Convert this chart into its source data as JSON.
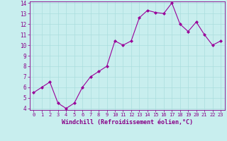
{
  "x": [
    0,
    1,
    2,
    3,
    4,
    5,
    6,
    7,
    8,
    9,
    10,
    11,
    12,
    13,
    14,
    15,
    16,
    17,
    18,
    19,
    20,
    21,
    22,
    23
  ],
  "y": [
    5.5,
    6.0,
    6.5,
    4.5,
    4.0,
    4.5,
    6.0,
    7.0,
    7.5,
    8.0,
    10.4,
    10.0,
    10.4,
    12.6,
    13.3,
    13.1,
    13.0,
    14.0,
    12.0,
    11.3,
    12.2,
    11.0,
    10.0,
    10.4
  ],
  "line_color": "#990099",
  "marker_color": "#990099",
  "bg_color": "#c8eeee",
  "grid_color": "#aadddd",
  "xlabel": "Windchill (Refroidissement éolien,°C)",
  "ylim": [
    4,
    14
  ],
  "xlim": [
    -0.5,
    23.5
  ],
  "yticks": [
    4,
    5,
    6,
    7,
    8,
    9,
    10,
    11,
    12,
    13,
    14
  ],
  "xticks": [
    0,
    1,
    2,
    3,
    4,
    5,
    6,
    7,
    8,
    9,
    10,
    11,
    12,
    13,
    14,
    15,
    16,
    17,
    18,
    19,
    20,
    21,
    22,
    23
  ],
  "tick_color": "#880088",
  "label_color": "#880088",
  "font_size_x": 5.0,
  "font_size_y": 5.5,
  "font_size_label": 6.0,
  "marker_size": 2.0,
  "line_width": 0.8
}
